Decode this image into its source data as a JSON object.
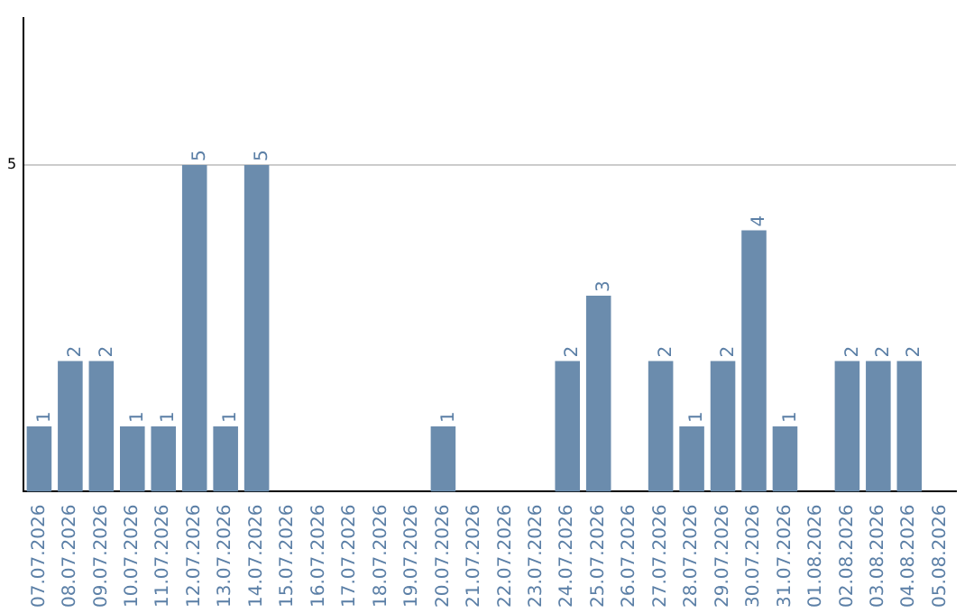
{
  "chart_data": {
    "type": "bar",
    "categories": [
      "07.07.2026",
      "08.07.2026",
      "09.07.2026",
      "10.07.2026",
      "11.07.2026",
      "12.07.2026",
      "13.07.2026",
      "14.07.2026",
      "15.07.2026",
      "16.07.2026",
      "17.07.2026",
      "18.07.2026",
      "19.07.2026",
      "20.07.2026",
      "21.07.2026",
      "22.07.2026",
      "23.07.2026",
      "24.07.2026",
      "25.07.2026",
      "26.07.2026",
      "27.07.2026",
      "28.07.2026",
      "29.07.2026",
      "30.07.2026",
      "31.07.2026",
      "01.08.2026",
      "02.08.2026",
      "03.08.2026",
      "04.08.2026",
      "05.08.2026"
    ],
    "values": [
      1,
      2,
      2,
      1,
      1,
      5,
      1,
      5,
      0,
      0,
      0,
      0,
      0,
      1,
      0,
      0,
      0,
      2,
      3,
      0,
      2,
      1,
      2,
      4,
      1,
      0,
      2,
      2,
      2,
      0
    ],
    "value_labels": [
      "1",
      "2",
      "2",
      "1",
      "1",
      "5",
      "1",
      "5",
      null,
      null,
      null,
      null,
      null,
      "1",
      null,
      null,
      null,
      "2",
      "3",
      null,
      "2",
      "1",
      "2",
      "4",
      "1",
      null,
      "2",
      "2",
      "2",
      null
    ],
    "color": "#6b8cad",
    "ylim": [
      0,
      7.25
    ],
    "yticks": [
      5
    ],
    "grid": "y",
    "legend": false
  }
}
